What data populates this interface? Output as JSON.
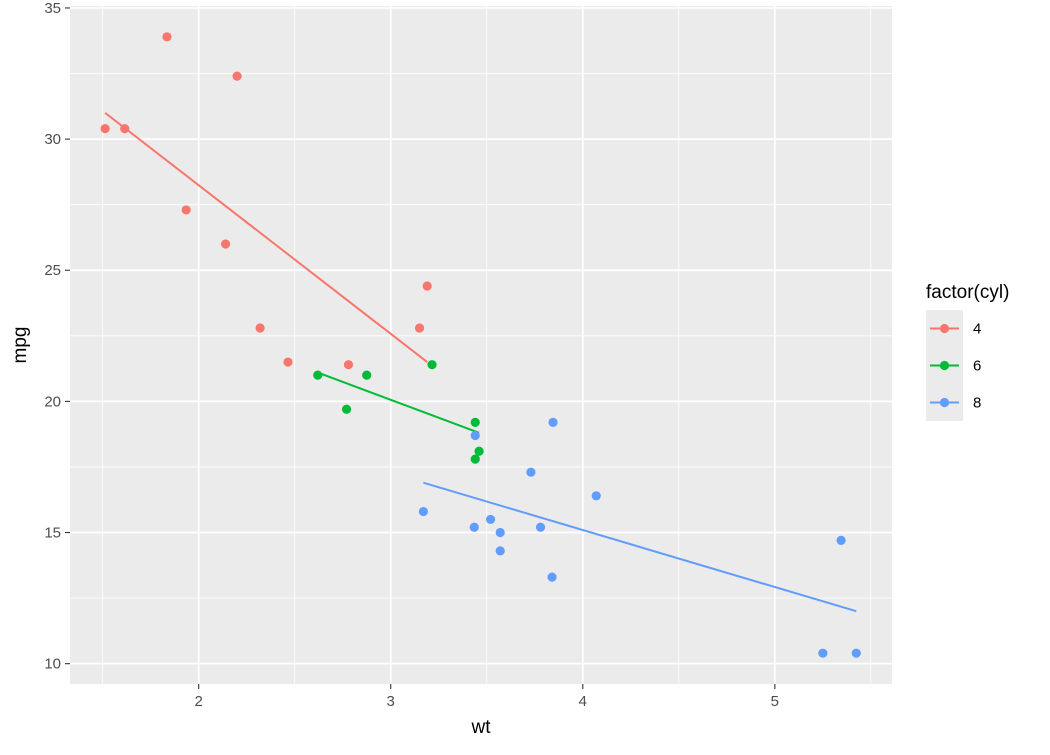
{
  "chart_data": {
    "type": "scatter",
    "xlabel": "wt",
    "ylabel": "mpg",
    "xlim": [
      1.33,
      5.61
    ],
    "ylim": [
      9.225,
      35.075
    ],
    "x_ticks": [
      2,
      3,
      4,
      5
    ],
    "y_ticks": [
      10,
      15,
      20,
      25,
      30,
      35
    ],
    "x_tick_labels": [
      "2",
      "3",
      "4",
      "5"
    ],
    "y_tick_labels": [
      "10",
      "15",
      "20",
      "25",
      "30",
      "35"
    ],
    "grid": true,
    "legend": {
      "title": "factor(cyl)",
      "position": "right"
    },
    "colors": {
      "panel": "#EBEBEB",
      "grid": "#FFFFFF"
    },
    "series": [
      {
        "name": "4",
        "color": "#F8766D",
        "points": [
          [
            1.513,
            30.4
          ],
          [
            1.615,
            30.4
          ],
          [
            1.835,
            33.9
          ],
          [
            1.935,
            27.3
          ],
          [
            2.14,
            26.0
          ],
          [
            2.2,
            32.4
          ],
          [
            2.32,
            22.8
          ],
          [
            2.465,
            21.5
          ],
          [
            2.78,
            21.4
          ],
          [
            3.15,
            22.8
          ],
          [
            3.19,
            24.4
          ]
        ],
        "fit": [
          [
            1.513,
            31.0
          ],
          [
            3.19,
            21.5
          ]
        ]
      },
      {
        "name": "6",
        "color": "#00BA38",
        "points": [
          [
            2.62,
            21.0
          ],
          [
            2.77,
            19.7
          ],
          [
            2.875,
            21.0
          ],
          [
            3.215,
            21.4
          ],
          [
            3.44,
            19.2
          ],
          [
            3.44,
            17.8
          ],
          [
            3.46,
            18.1
          ]
        ],
        "fit": [
          [
            2.62,
            21.1
          ],
          [
            3.46,
            18.8
          ]
        ]
      },
      {
        "name": "8",
        "color": "#619CFF",
        "points": [
          [
            3.17,
            15.8
          ],
          [
            3.44,
            18.7
          ],
          [
            3.435,
            15.2
          ],
          [
            3.52,
            15.5
          ],
          [
            3.57,
            15.0
          ],
          [
            3.57,
            14.3
          ],
          [
            3.73,
            17.3
          ],
          [
            3.78,
            15.2
          ],
          [
            3.84,
            13.3
          ],
          [
            3.845,
            19.2
          ],
          [
            4.07,
            16.4
          ],
          [
            5.25,
            10.4
          ],
          [
            5.345,
            14.7
          ],
          [
            5.424,
            10.4
          ]
        ],
        "fit": [
          [
            3.17,
            16.9
          ],
          [
            5.424,
            12.0
          ]
        ]
      }
    ]
  }
}
